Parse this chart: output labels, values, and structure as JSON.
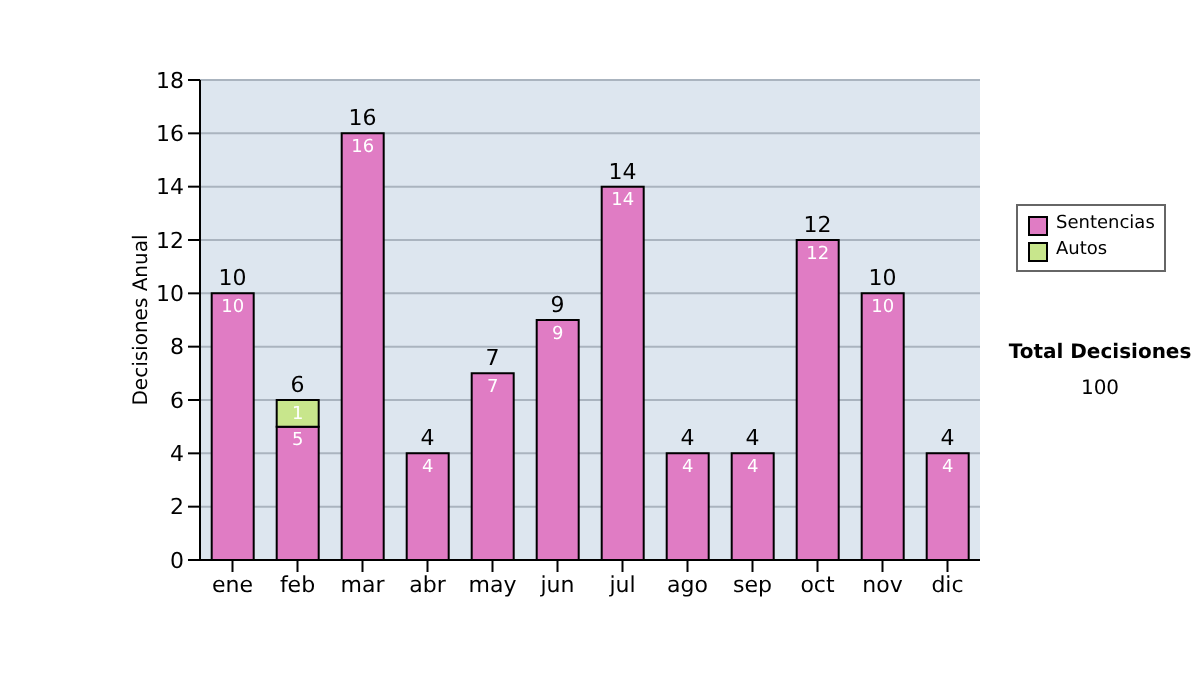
{
  "chart_data": {
    "type": "bar",
    "stacked": true,
    "ylabel": "Decisiones Anual",
    "categories": [
      "ene",
      "feb",
      "mar",
      "abr",
      "may",
      "jun",
      "jul",
      "ago",
      "sep",
      "oct",
      "nov",
      "dic"
    ],
    "series": [
      {
        "name": "Sentencias",
        "color": "#e07cc4",
        "values": [
          10,
          5,
          16,
          4,
          7,
          9,
          14,
          4,
          4,
          12,
          10,
          4
        ]
      },
      {
        "name": "Autos",
        "color": "#c8e68c",
        "values": [
          null,
          1,
          null,
          null,
          null,
          null,
          null,
          null,
          null,
          null,
          null,
          null
        ]
      }
    ],
    "totals": [
      "10",
      "6",
      "16",
      "4",
      "7",
      "9",
      "14",
      "4",
      "4",
      "12",
      "10",
      "4"
    ],
    "data_labels": true,
    "ylim": [
      0,
      18
    ],
    "yticks": [
      0,
      2,
      4,
      6,
      8,
      10,
      12,
      14,
      16,
      18
    ],
    "grid": "y",
    "legend": "right",
    "annotations": [
      "Total Decisiones",
      "100"
    ]
  }
}
